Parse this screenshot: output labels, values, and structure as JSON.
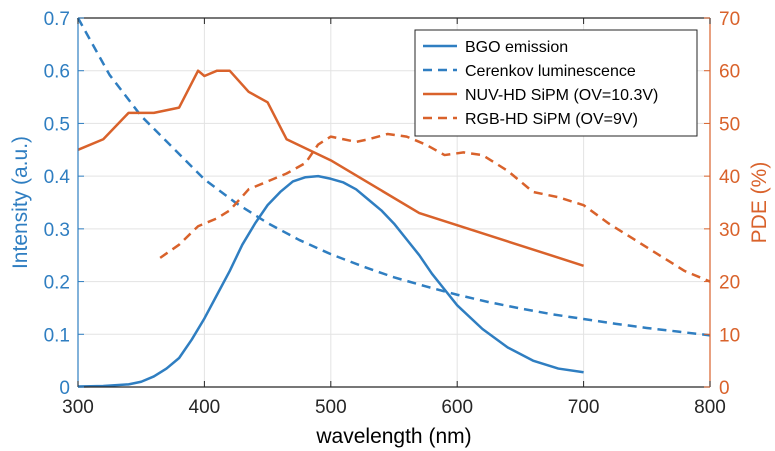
{
  "chart_data": {
    "type": "line",
    "xlabel": "wavelength (nm)",
    "ylabel_left": "Intensity (a.u.)",
    "ylabel_right": "PDE (%)",
    "xlim": [
      300,
      800
    ],
    "ylim_left": [
      0,
      0.7
    ],
    "ylim_right": [
      0,
      70
    ],
    "x_ticks": [
      300,
      400,
      500,
      600,
      700,
      800
    ],
    "y_left_ticks": [
      0,
      0.1,
      0.2,
      0.3,
      0.4,
      0.5,
      0.6,
      0.7
    ],
    "y_right_ticks": [
      0,
      10,
      20,
      30,
      40,
      50,
      60,
      70
    ],
    "grid": true,
    "legend_position": "top-right",
    "colors": {
      "left_axis": "#2f7ec1",
      "right_axis": "#d9622b",
      "blue": "#2f7ec1",
      "orange": "#d9622b"
    },
    "series": [
      {
        "name": "BGO emission",
        "axis": "left",
        "style": "solid",
        "color": "#2f7ec1",
        "x": [
          300,
          320,
          340,
          350,
          360,
          370,
          380,
          390,
          400,
          410,
          420,
          430,
          440,
          450,
          460,
          470,
          480,
          490,
          500,
          510,
          520,
          530,
          540,
          550,
          560,
          570,
          580,
          590,
          600,
          620,
          640,
          660,
          680,
          700
        ],
        "y": [
          0.001,
          0.002,
          0.005,
          0.01,
          0.02,
          0.035,
          0.055,
          0.09,
          0.13,
          0.175,
          0.22,
          0.27,
          0.31,
          0.345,
          0.37,
          0.39,
          0.398,
          0.4,
          0.395,
          0.388,
          0.375,
          0.355,
          0.335,
          0.31,
          0.28,
          0.25,
          0.215,
          0.185,
          0.155,
          0.11,
          0.075,
          0.05,
          0.035,
          0.028
        ]
      },
      {
        "name": "Cerenkov luminescence",
        "axis": "left",
        "style": "dashed",
        "color": "#2f7ec1",
        "x": [
          300,
          325,
          350,
          375,
          400,
          425,
          450,
          475,
          500,
          525,
          550,
          575,
          600,
          625,
          650,
          675,
          700,
          725,
          750,
          775,
          800
        ],
        "y": [
          0.7,
          0.592,
          0.514,
          0.454,
          0.394,
          0.349,
          0.311,
          0.279,
          0.252,
          0.229,
          0.208,
          0.191,
          0.175,
          0.161,
          0.149,
          0.138,
          0.129,
          0.12,
          0.112,
          0.105,
          0.098
        ]
      },
      {
        "name": "NUV-HD SiPM (OV=10.3V)",
        "axis": "right",
        "style": "solid",
        "color": "#d9622b",
        "x": [
          300,
          320,
          340,
          360,
          380,
          395,
          400,
          410,
          420,
          435,
          450,
          465,
          500,
          570,
          700
        ],
        "y": [
          45,
          47,
          52,
          52,
          53,
          60,
          59,
          60,
          60,
          56,
          54,
          47,
          43,
          33,
          23
        ]
      },
      {
        "name": "RGB-HD SiPM (OV=9V)",
        "axis": "right",
        "style": "dashed",
        "color": "#d9622b",
        "x": [
          365,
          380,
          395,
          410,
          420,
          435,
          450,
          465,
          480,
          490,
          500,
          510,
          520,
          530,
          545,
          560,
          575,
          590,
          605,
          620,
          640,
          660,
          680,
          700,
          720,
          750,
          780,
          800
        ],
        "y": [
          24.5,
          27,
          30.5,
          32,
          33.5,
          37.5,
          39,
          40.5,
          42.5,
          46,
          47.5,
          47,
          46.5,
          47,
          48,
          47.5,
          46,
          44,
          44.5,
          44,
          41,
          37,
          36,
          34.5,
          31,
          26.5,
          22,
          20
        ]
      }
    ]
  }
}
